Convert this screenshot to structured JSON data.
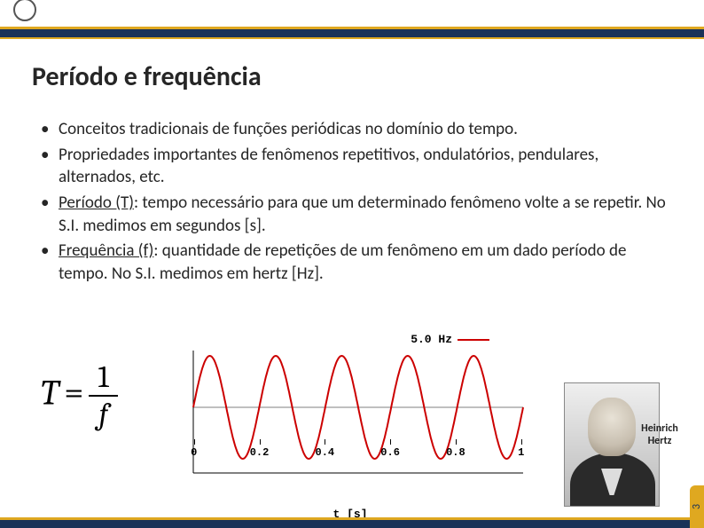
{
  "colors": {
    "bar_bg": "#1a3258",
    "accent": "#dfa820",
    "wave": "#cc0000",
    "text": "#262626"
  },
  "title": "Período e frequência",
  "bullets": [
    {
      "text": "Conceitos tradicionais de funções periódicas no domínio do tempo."
    },
    {
      "text": "Propriedades importantes de fenômenos repetitivos, ondulatórios, pendulares, alternados, etc."
    },
    {
      "period_label": "Período (T)",
      "text_after": ": tempo necessário para que um determinado fenômeno volte a se repetir. No S.I. medimos em segundos [s]."
    },
    {
      "freq_label": "Frequência (f)",
      "text_after": ": quantidade de repetições de um fenômeno em um dado período de tempo. No S.I. medimos em hertz [Hz]."
    }
  ],
  "formula": {
    "T": "T",
    "eq": "=",
    "num": "1",
    "den": "f"
  },
  "chart": {
    "type": "line",
    "legend": "5.0 Hz",
    "x_axis_label": "t [s]",
    "x_ticks": [
      {
        "label": "0",
        "pos_pct": 7
      },
      {
        "label": "0.2",
        "pos_pct": 25
      },
      {
        "label": "0.4",
        "pos_pct": 43
      },
      {
        "label": "0.6",
        "pos_pct": 61
      },
      {
        "label": "0.8",
        "pos_pct": 79
      },
      {
        "label": "1",
        "pos_pct": 97
      }
    ],
    "amplitude": 1.0,
    "freq_hz": 5.0,
    "xlim": [
      0,
      1
    ],
    "ylim": [
      -1,
      1
    ],
    "line_color": "#cc0000",
    "line_width": 2,
    "axis_color": "#000000",
    "chart_bg": "#ffffff"
  },
  "portrait": {
    "caption_line1": "Heinrich",
    "caption_line2": "Hertz"
  },
  "page_number": "3"
}
